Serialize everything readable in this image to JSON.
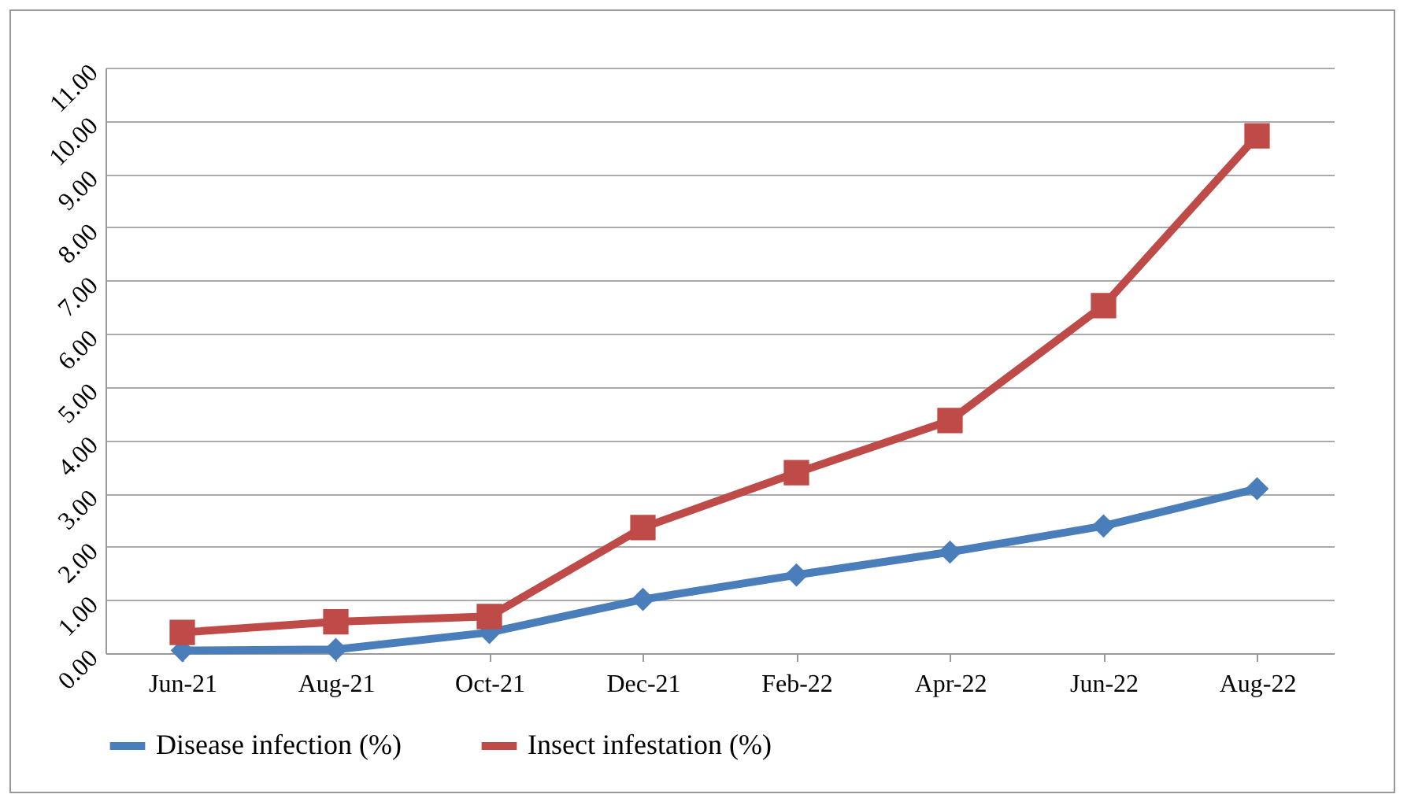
{
  "chart_data": {
    "type": "line",
    "categories": [
      "Jun-21",
      "Aug-21",
      "Oct-21",
      "Dec-21",
      "Feb-22",
      "Apr-22",
      "Jun-22",
      "Aug-22"
    ],
    "series": [
      {
        "name": "Disease infection (%)",
        "color": "#4a7ebb",
        "marker": "diamond",
        "values": [
          0.05,
          0.07,
          0.39,
          1.01,
          1.47,
          1.9,
          2.39,
          3.09
        ]
      },
      {
        "name": "Insect infestation (%)",
        "color": "#be4b48",
        "marker": "square",
        "values": [
          0.39,
          0.59,
          0.69,
          2.36,
          3.39,
          4.37,
          6.53,
          9.72
        ]
      }
    ],
    "ylim": [
      0,
      11
    ],
    "yticks": [
      {
        "value": 0,
        "label": "0.00"
      },
      {
        "value": 1,
        "label": "1.00"
      },
      {
        "value": 2,
        "label": "2.00"
      },
      {
        "value": 3,
        "label": "3.00"
      },
      {
        "value": 4,
        "label": "4.00"
      },
      {
        "value": 5,
        "label": "5.00"
      },
      {
        "value": 6,
        "label": "6.00"
      },
      {
        "value": 7,
        "label": "7.00"
      },
      {
        "value": 8,
        "label": "8.00"
      },
      {
        "value": 9,
        "label": "9.00"
      },
      {
        "value": 10,
        "label": "10.00"
      },
      {
        "value": 11,
        "label": "11.00"
      }
    ],
    "grid": "y",
    "legend": "bottom",
    "line_style": "solid"
  }
}
